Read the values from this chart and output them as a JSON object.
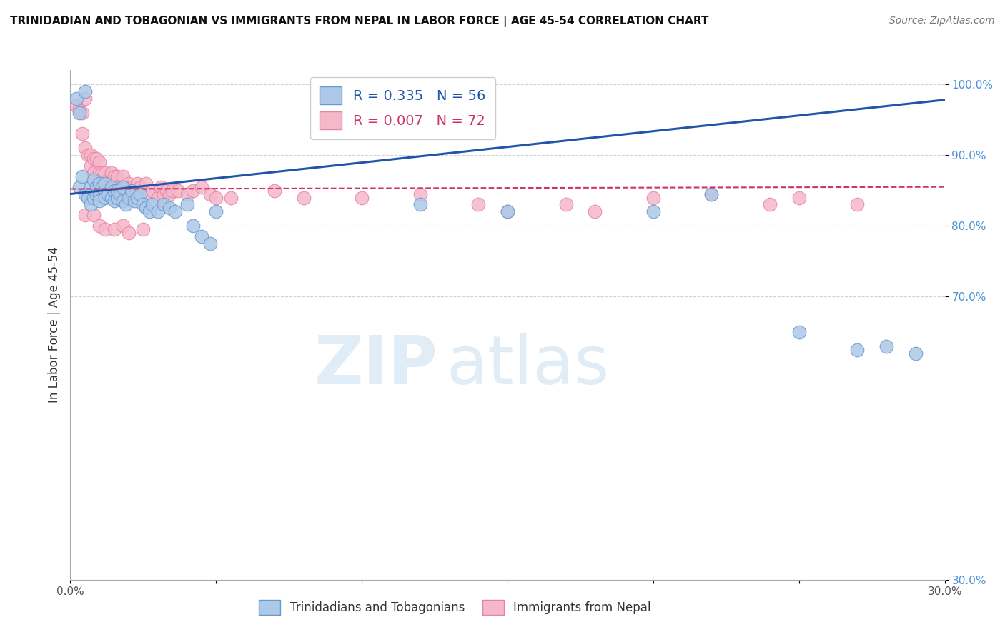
{
  "title": "TRINIDADIAN AND TOBAGONIAN VS IMMIGRANTS FROM NEPAL IN LABOR FORCE | AGE 45-54 CORRELATION CHART",
  "source": "Source: ZipAtlas.com",
  "ylabel": "In Labor Force | Age 45-54",
  "xlim": [
    0.0,
    0.3
  ],
  "ylim": [
    0.3,
    1.02
  ],
  "xtick_vals": [
    0.0,
    0.05,
    0.1,
    0.15,
    0.2,
    0.25,
    0.3
  ],
  "xticklabels": [
    "0.0%",
    "",
    "",
    "",
    "",
    "",
    "30.0%"
  ],
  "ytick_vals": [
    0.3,
    0.7,
    0.8,
    0.9,
    1.0
  ],
  "yticklabels": [
    "30.0%",
    "70.0%",
    "80.0%",
    "90.0%",
    "100.0%"
  ],
  "blue_R": 0.335,
  "blue_N": 56,
  "pink_R": 0.007,
  "pink_N": 72,
  "blue_fill": "#adc8e8",
  "blue_edge": "#6699cc",
  "pink_fill": "#f5b8cb",
  "pink_edge": "#e882a0",
  "blue_line_color": "#2255aa",
  "pink_line_color": "#cc3366",
  "watermark_zip": "ZIP",
  "watermark_atlas": "atlas",
  "legend_label_blue": "Trinidadians and Tobagonians",
  "legend_label_pink": "Immigrants from Nepal",
  "blue_line_x0": 0.0,
  "blue_line_x1": 0.3,
  "blue_line_y0": 0.845,
  "blue_line_y1": 0.978,
  "pink_line_x0": 0.0,
  "pink_line_x1": 0.3,
  "pink_line_y0": 0.852,
  "pink_line_y1": 0.855,
  "blue_x": [
    0.002,
    0.003,
    0.003,
    0.004,
    0.005,
    0.005,
    0.006,
    0.007,
    0.007,
    0.008,
    0.008,
    0.009,
    0.009,
    0.01,
    0.01,
    0.01,
    0.011,
    0.012,
    0.012,
    0.013,
    0.014,
    0.014,
    0.015,
    0.015,
    0.016,
    0.016,
    0.017,
    0.018,
    0.018,
    0.019,
    0.02,
    0.021,
    0.022,
    0.023,
    0.024,
    0.025,
    0.026,
    0.027,
    0.028,
    0.03,
    0.032,
    0.034,
    0.036,
    0.04,
    0.042,
    0.045,
    0.048,
    0.05,
    0.12,
    0.15,
    0.2,
    0.22,
    0.25,
    0.27,
    0.28,
    0.29
  ],
  "blue_y": [
    0.98,
    0.96,
    0.855,
    0.87,
    0.99,
    0.845,
    0.84,
    0.83,
    0.855,
    0.865,
    0.84,
    0.855,
    0.845,
    0.86,
    0.845,
    0.835,
    0.855,
    0.86,
    0.84,
    0.845,
    0.855,
    0.84,
    0.85,
    0.835,
    0.84,
    0.85,
    0.845,
    0.855,
    0.835,
    0.83,
    0.84,
    0.85,
    0.835,
    0.84,
    0.845,
    0.83,
    0.825,
    0.82,
    0.83,
    0.82,
    0.83,
    0.825,
    0.82,
    0.83,
    0.8,
    0.785,
    0.775,
    0.82,
    0.83,
    0.82,
    0.82,
    0.845,
    0.65,
    0.625,
    0.63,
    0.62
  ],
  "pink_x": [
    0.002,
    0.003,
    0.004,
    0.004,
    0.005,
    0.005,
    0.006,
    0.007,
    0.007,
    0.008,
    0.008,
    0.009,
    0.01,
    0.01,
    0.01,
    0.011,
    0.012,
    0.012,
    0.013,
    0.014,
    0.015,
    0.015,
    0.016,
    0.016,
    0.017,
    0.018,
    0.018,
    0.019,
    0.02,
    0.02,
    0.021,
    0.022,
    0.023,
    0.024,
    0.025,
    0.026,
    0.027,
    0.028,
    0.03,
    0.031,
    0.032,
    0.033,
    0.034,
    0.035,
    0.037,
    0.04,
    0.042,
    0.045,
    0.048,
    0.05,
    0.055,
    0.07,
    0.08,
    0.1,
    0.12,
    0.14,
    0.15,
    0.17,
    0.18,
    0.2,
    0.22,
    0.24,
    0.25,
    0.27,
    0.005,
    0.008,
    0.01,
    0.012,
    0.015,
    0.018,
    0.02,
    0.025
  ],
  "pink_y": [
    0.97,
    0.965,
    0.96,
    0.93,
    0.98,
    0.91,
    0.9,
    0.9,
    0.885,
    0.895,
    0.875,
    0.895,
    0.89,
    0.875,
    0.865,
    0.875,
    0.875,
    0.86,
    0.865,
    0.875,
    0.87,
    0.86,
    0.87,
    0.855,
    0.855,
    0.87,
    0.855,
    0.855,
    0.86,
    0.845,
    0.855,
    0.845,
    0.86,
    0.855,
    0.85,
    0.86,
    0.845,
    0.85,
    0.84,
    0.855,
    0.845,
    0.85,
    0.845,
    0.85,
    0.85,
    0.845,
    0.85,
    0.855,
    0.845,
    0.84,
    0.84,
    0.85,
    0.84,
    0.84,
    0.845,
    0.83,
    0.82,
    0.83,
    0.82,
    0.84,
    0.845,
    0.83,
    0.84,
    0.83,
    0.815,
    0.815,
    0.8,
    0.795,
    0.795,
    0.8,
    0.79,
    0.795
  ]
}
